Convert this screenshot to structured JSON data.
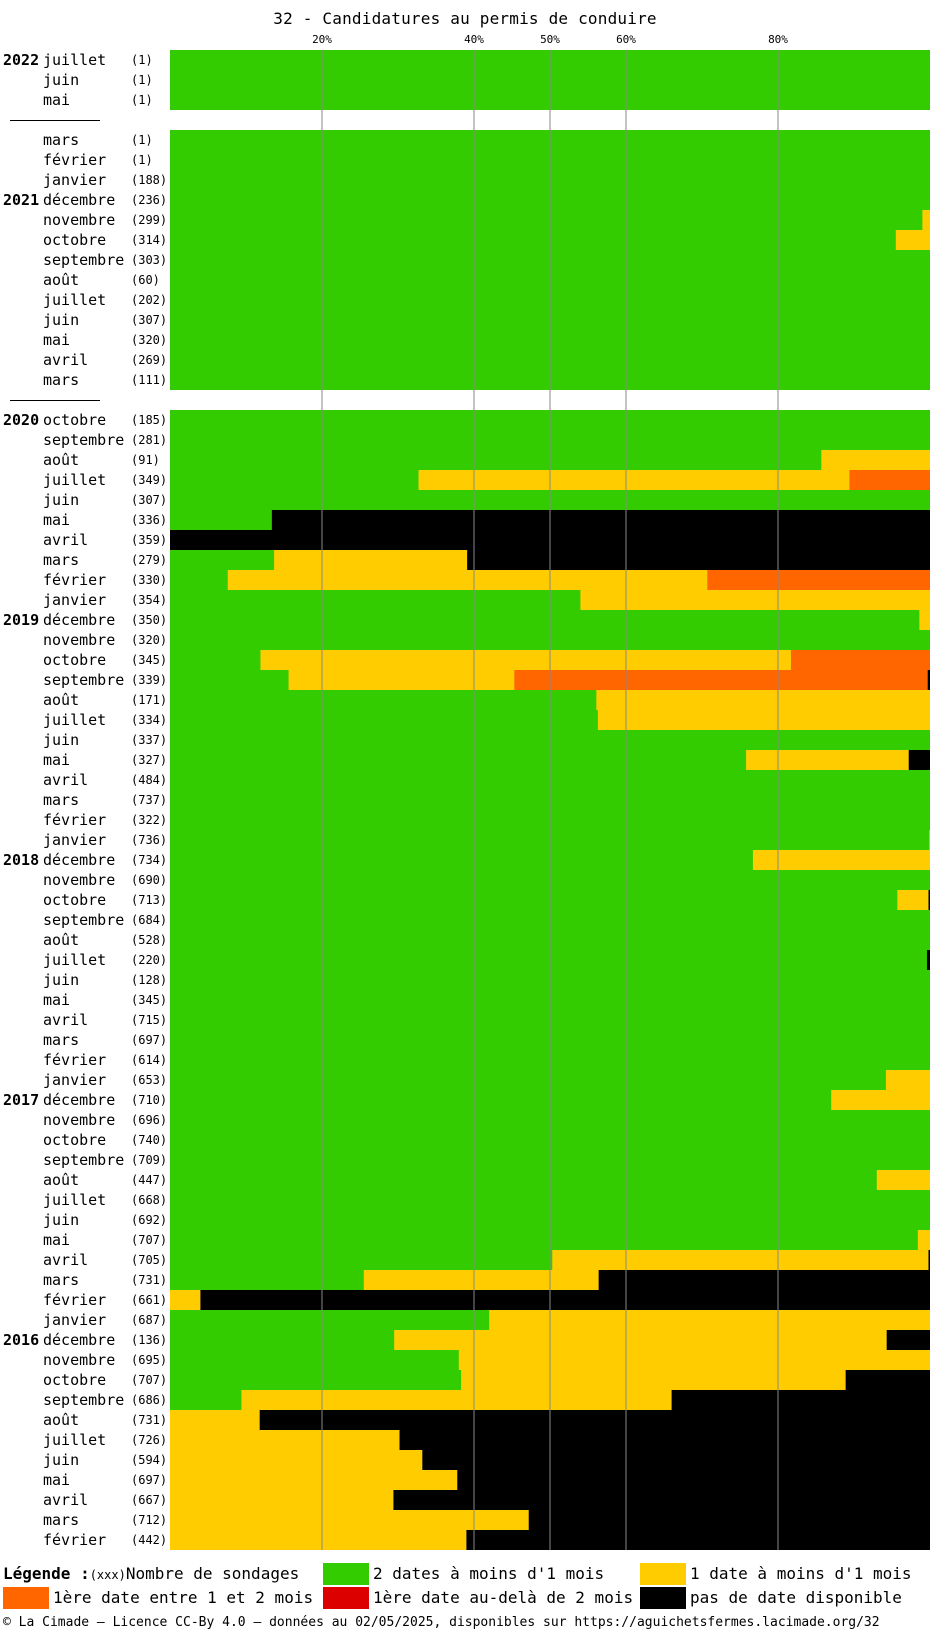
{
  "title": "32 - Candidatures au permis de conduire",
  "colors": {
    "green": "#33cc00",
    "yellow": "#ffcc00",
    "orange": "#ff6600",
    "red": "#dd0000",
    "black": "#000000",
    "gridline": "#888888"
  },
  "legend": {
    "heading": "Légende :",
    "count_hint": "(xxx)",
    "count_label": "Nombre de sondages",
    "items": [
      {
        "color": "green",
        "label": "2 dates à moins d'1 mois"
      },
      {
        "color": "yellow",
        "label": "1 date à moins d'1 mois"
      },
      {
        "color": "orange",
        "label": "1ère date entre 1 et 2 mois"
      },
      {
        "color": "red",
        "label": "1ère date au-delà de 2 mois"
      },
      {
        "color": "black",
        "label": "pas de date disponible"
      }
    ]
  },
  "footer": "© La Cimade – Licence CC-By 4.0 – données au 02/05/2025, disponibles sur https://aguichetsfermes.lacimade.org/32",
  "chart_data": {
    "type": "bar",
    "orientation": "horizontal",
    "stacked": "100%",
    "title": "32 - Candidatures au permis de conduire",
    "x_ticks": [
      "20%",
      "40%",
      "50%",
      "60%",
      "80%"
    ],
    "x_tick_values": [
      20,
      40,
      50,
      60,
      80
    ],
    "xlim": [
      0,
      100
    ],
    "segment_order": [
      "green",
      "yellow",
      "orange",
      "red",
      "black"
    ],
    "groups": [
      {
        "rows": [
          {
            "year": "2022",
            "month": "juillet",
            "count": "(1)",
            "pct": [
              100,
              0,
              0,
              0,
              0
            ]
          },
          {
            "year": "",
            "month": "juin",
            "count": "(1)",
            "pct": [
              100,
              0,
              0,
              0,
              0
            ]
          },
          {
            "year": "",
            "month": "mai",
            "count": "(1)",
            "pct": [
              100,
              0,
              0,
              0,
              0
            ]
          }
        ]
      },
      {
        "rows": [
          {
            "year": "",
            "month": "mars",
            "count": "(1)",
            "pct": [
              100,
              0,
              0,
              0,
              0
            ]
          },
          {
            "year": "",
            "month": "février",
            "count": "(1)",
            "pct": [
              100,
              0,
              0,
              0,
              0
            ]
          },
          {
            "year": "",
            "month": "janvier",
            "count": "(188)",
            "pct": [
              100,
              0,
              0,
              0,
              0
            ]
          },
          {
            "year": "2021",
            "month": "décembre",
            "count": "(236)",
            "pct": [
              100,
              0,
              0,
              0,
              0
            ]
          },
          {
            "year": "",
            "month": "novembre",
            "count": "(299)",
            "pct": [
              99,
              1,
              0,
              0,
              0
            ]
          },
          {
            "year": "",
            "month": "octobre",
            "count": "(314)",
            "pct": [
              95.5,
              4.5,
              0,
              0,
              0
            ]
          },
          {
            "year": "",
            "month": "septembre",
            "count": "(303)",
            "pct": [
              100,
              0,
              0,
              0,
              0
            ]
          },
          {
            "year": "",
            "month": "août",
            "count": "(60)",
            "pct": [
              100,
              0,
              0,
              0,
              0
            ]
          },
          {
            "year": "",
            "month": "juillet",
            "count": "(202)",
            "pct": [
              100,
              0,
              0,
              0,
              0
            ]
          },
          {
            "year": "",
            "month": "juin",
            "count": "(307)",
            "pct": [
              100,
              0,
              0,
              0,
              0
            ]
          },
          {
            "year": "",
            "month": "mai",
            "count": "(320)",
            "pct": [
              100,
              0,
              0,
              0,
              0
            ]
          },
          {
            "year": "",
            "month": "avril",
            "count": "(269)",
            "pct": [
              100,
              0,
              0,
              0,
              0
            ]
          },
          {
            "year": "",
            "month": "mars",
            "count": "(111)",
            "pct": [
              100,
              0,
              0,
              0,
              0
            ]
          }
        ]
      },
      {
        "rows": [
          {
            "year": "2020",
            "month": "octobre",
            "count": "(185)",
            "pct": [
              100,
              0,
              0,
              0,
              0
            ]
          },
          {
            "year": "",
            "month": "septembre",
            "count": "(281)",
            "pct": [
              100,
              0,
              0,
              0,
              0
            ]
          },
          {
            "year": "",
            "month": "août",
            "count": "(91)",
            "pct": [
              85.7,
              14.3,
              0,
              0,
              0
            ]
          },
          {
            "year": "",
            "month": "juillet",
            "count": "(349)",
            "pct": [
              32.7,
              56.7,
              10.6,
              0,
              0
            ]
          },
          {
            "year": "",
            "month": "juin",
            "count": "(307)",
            "pct": [
              100,
              0,
              0,
              0,
              0
            ]
          },
          {
            "year": "",
            "month": "mai",
            "count": "(336)",
            "pct": [
              13.4,
              0,
              0,
              0,
              86.6
            ]
          },
          {
            "year": "",
            "month": "avril",
            "count": "(359)",
            "pct": [
              0,
              0,
              0,
              0,
              100
            ]
          },
          {
            "year": "",
            "month": "mars",
            "count": "(279)",
            "pct": [
              13.7,
              25.4,
              0,
              0,
              60.9
            ]
          },
          {
            "year": "",
            "month": "février",
            "count": "(330)",
            "pct": [
              7.6,
              63.1,
              29.3,
              0,
              0
            ]
          },
          {
            "year": "",
            "month": "janvier",
            "count": "(354)",
            "pct": [
              54,
              46,
              0,
              0,
              0
            ]
          },
          {
            "year": "2019",
            "month": "décembre",
            "count": "(350)",
            "pct": [
              98.6,
              1.4,
              0,
              0,
              0
            ]
          },
          {
            "year": "",
            "month": "novembre",
            "count": "(320)",
            "pct": [
              100,
              0,
              0,
              0,
              0
            ]
          },
          {
            "year": "",
            "month": "octobre",
            "count": "(345)",
            "pct": [
              11.9,
              69.8,
              18.3,
              0,
              0
            ]
          },
          {
            "year": "",
            "month": "septembre",
            "count": "(339)",
            "pct": [
              15.6,
              29.7,
              54.4,
              0,
              0.3
            ]
          },
          {
            "year": "",
            "month": "août",
            "count": "(171)",
            "pct": [
              56.1,
              43.9,
              0,
              0,
              0
            ]
          },
          {
            "year": "",
            "month": "juillet",
            "count": "(334)",
            "pct": [
              56.3,
              43.7,
              0,
              0,
              0
            ]
          },
          {
            "year": "",
            "month": "juin",
            "count": "(337)",
            "pct": [
              100,
              0,
              0,
              0,
              0
            ]
          },
          {
            "year": "",
            "month": "mai",
            "count": "(327)",
            "pct": [
              75.8,
              21.4,
              0,
              0,
              2.8
            ]
          },
          {
            "year": "",
            "month": "avril",
            "count": "(484)",
            "pct": [
              100,
              0,
              0,
              0,
              0
            ]
          },
          {
            "year": "",
            "month": "mars",
            "count": "(737)",
            "pct": [
              100,
              0,
              0,
              0,
              0
            ]
          },
          {
            "year": "",
            "month": "février",
            "count": "(322)",
            "pct": [
              100,
              0,
              0,
              0,
              0
            ]
          },
          {
            "year": "",
            "month": "janvier",
            "count": "(736)",
            "pct": [
              99.9,
              0.1,
              0,
              0,
              0
            ]
          },
          {
            "year": "2018",
            "month": "décembre",
            "count": "(734)",
            "pct": [
              76.7,
              23.3,
              0,
              0,
              0
            ]
          },
          {
            "year": "",
            "month": "novembre",
            "count": "(690)",
            "pct": [
              100,
              0,
              0,
              0,
              0
            ]
          },
          {
            "year": "",
            "month": "octobre",
            "count": "(713)",
            "pct": [
              95.7,
              4.1,
              0,
              0,
              0.2
            ]
          },
          {
            "year": "",
            "month": "septembre",
            "count": "(684)",
            "pct": [
              100,
              0,
              0,
              0,
              0
            ]
          },
          {
            "year": "",
            "month": "août",
            "count": "(528)",
            "pct": [
              100,
              0,
              0,
              0,
              0
            ]
          },
          {
            "year": "",
            "month": "juillet",
            "count": "(220)",
            "pct": [
              99.6,
              0,
              0,
              0,
              0.4
            ]
          },
          {
            "year": "",
            "month": "juin",
            "count": "(128)",
            "pct": [
              100,
              0,
              0,
              0,
              0
            ]
          },
          {
            "year": "",
            "month": "mai",
            "count": "(345)",
            "pct": [
              100,
              0,
              0,
              0,
              0
            ]
          },
          {
            "year": "",
            "month": "avril",
            "count": "(715)",
            "pct": [
              100,
              0,
              0,
              0,
              0
            ]
          },
          {
            "year": "",
            "month": "mars",
            "count": "(697)",
            "pct": [
              100,
              0,
              0,
              0,
              0
            ]
          },
          {
            "year": "",
            "month": "février",
            "count": "(614)",
            "pct": [
              100,
              0,
              0,
              0,
              0
            ]
          },
          {
            "year": "",
            "month": "janvier",
            "count": "(653)",
            "pct": [
              94.2,
              5.8,
              0,
              0,
              0
            ]
          },
          {
            "year": "2017",
            "month": "décembre",
            "count": "(710)",
            "pct": [
              87,
              13,
              0,
              0,
              0
            ]
          },
          {
            "year": "",
            "month": "novembre",
            "count": "(696)",
            "pct": [
              100,
              0,
              0,
              0,
              0
            ]
          },
          {
            "year": "",
            "month": "octobre",
            "count": "(740)",
            "pct": [
              100,
              0,
              0,
              0,
              0
            ]
          },
          {
            "year": "",
            "month": "septembre",
            "count": "(709)",
            "pct": [
              100,
              0,
              0,
              0,
              0
            ]
          },
          {
            "year": "",
            "month": "août",
            "count": "(447)",
            "pct": [
              93,
              7,
              0,
              0,
              0
            ]
          },
          {
            "year": "",
            "month": "juillet",
            "count": "(668)",
            "pct": [
              100,
              0,
              0,
              0,
              0
            ]
          },
          {
            "year": "",
            "month": "juin",
            "count": "(692)",
            "pct": [
              100,
              0,
              0,
              0,
              0
            ]
          },
          {
            "year": "",
            "month": "mai",
            "count": "(707)",
            "pct": [
              98.4,
              1.6,
              0,
              0,
              0
            ]
          },
          {
            "year": "",
            "month": "avril",
            "count": "(705)",
            "pct": [
              50.3,
              49.5,
              0,
              0,
              0.2
            ]
          },
          {
            "year": "",
            "month": "mars",
            "count": "(731)",
            "pct": [
              25.5,
              30.9,
              0,
              0,
              43.6
            ]
          },
          {
            "year": "",
            "month": "février",
            "count": "(661)",
            "pct": [
              0,
              4,
              0,
              0,
              96
            ]
          },
          {
            "year": "",
            "month": "janvier",
            "count": "(687)",
            "pct": [
              42,
              58,
              0,
              0,
              0
            ]
          },
          {
            "year": "2016",
            "month": "décembre",
            "count": "(136)",
            "pct": [
              29.5,
              64.8,
              0,
              0,
              5.7
            ]
          },
          {
            "year": "",
            "month": "novembre",
            "count": "(695)",
            "pct": [
              38,
              62,
              0,
              0,
              0
            ]
          },
          {
            "year": "",
            "month": "octobre",
            "count": "(707)",
            "pct": [
              38.3,
              50.6,
              0,
              0,
              11.1
            ]
          },
          {
            "year": "",
            "month": "septembre",
            "count": "(686)",
            "pct": [
              9.4,
              56.6,
              0,
              0,
              34
            ]
          },
          {
            "year": "",
            "month": "août",
            "count": "(731)",
            "pct": [
              0,
              11.8,
              0,
              0,
              88.2
            ]
          },
          {
            "year": "",
            "month": "juillet",
            "count": "(726)",
            "pct": [
              0,
              30.2,
              0,
              0,
              69.8
            ]
          },
          {
            "year": "",
            "month": "juin",
            "count": "(594)",
            "pct": [
              0,
              33.2,
              0,
              0,
              66.8
            ]
          },
          {
            "year": "",
            "month": "mai",
            "count": "(697)",
            "pct": [
              0,
              37.8,
              0,
              0,
              62.2
            ]
          },
          {
            "year": "",
            "month": "avril",
            "count": "(667)",
            "pct": [
              0,
              29.4,
              0,
              0,
              70.6
            ]
          },
          {
            "year": "",
            "month": "mars",
            "count": "(712)",
            "pct": [
              0,
              47.2,
              0,
              0,
              52.8
            ]
          },
          {
            "year": "",
            "month": "février",
            "count": "(442)",
            "pct": [
              0,
              39,
              0,
              0,
              61
            ]
          }
        ]
      }
    ]
  }
}
